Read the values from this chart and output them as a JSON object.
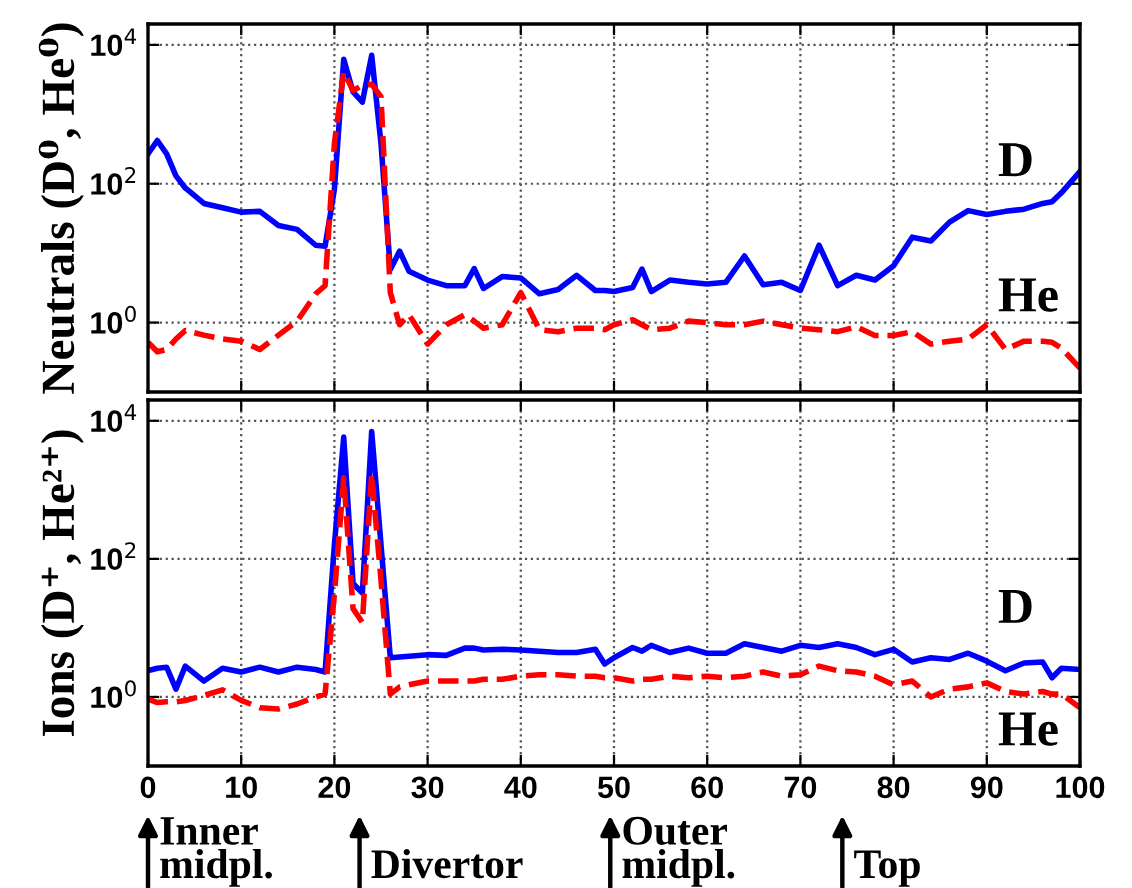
{
  "chart_data": [
    {
      "type": "line",
      "ylabel": "Neutrals (D⁰, He⁰)",
      "log": "y",
      "grid": true,
      "tick_labels": "y",
      "x": [
        0,
        1,
        2,
        3,
        4,
        6,
        8,
        10,
        12,
        14,
        16,
        18,
        19,
        20,
        21,
        22,
        23,
        24,
        25,
        26,
        27,
        28,
        30,
        32,
        34,
        35,
        36,
        38,
        40,
        42,
        44,
        46,
        48,
        49,
        50,
        52,
        53,
        54,
        56,
        58,
        60,
        62,
        64,
        66,
        68,
        70,
        72,
        74,
        76,
        78,
        80,
        82,
        84,
        86,
        88,
        90,
        92,
        94,
        96,
        97,
        98,
        100
      ],
      "xlim": [
        0,
        100
      ],
      "xticks": [
        {
          "value": 0,
          "label": null
        },
        {
          "value": 10,
          "label": null
        },
        {
          "value": 20,
          "label": null
        },
        {
          "value": 30,
          "label": null
        },
        {
          "value": 40,
          "label": null
        },
        {
          "value": 50,
          "label": null
        },
        {
          "value": 60,
          "label": null
        },
        {
          "value": 70,
          "label": null
        },
        {
          "value": 80,
          "label": null
        },
        {
          "value": 90,
          "label": null
        },
        {
          "value": 100,
          "label": null
        }
      ],
      "ylim": [
        0.1,
        20000
      ],
      "yticks": [
        {
          "value": 1,
          "label": "10$^{0}$"
        },
        {
          "value": 100,
          "label": "10$^{2}$"
        },
        {
          "value": 10000,
          "label": "10$^{4}$"
        }
      ],
      "series": [
        {
          "name": "D",
          "color": "#0000ff",
          "line_style": "solid",
          "values": [
            270,
            420,
            270,
            130,
            87,
            52,
            45,
            39,
            40,
            25,
            22,
            13,
            12.6,
            83,
            6200,
            2100,
            1500,
            7100,
            380,
            5.8,
            10.7,
            5.5,
            4.1,
            3.4,
            3.4,
            6.0,
            3.1,
            4.6,
            4.4,
            2.6,
            3.0,
            4.8,
            2.9,
            2.9,
            2.8,
            3.2,
            5.9,
            2.8,
            4.1,
            3.8,
            3.6,
            3.8,
            9.1,
            3.5,
            3.8,
            2.9,
            13,
            3.4,
            4.8,
            4.1,
            6.6,
            17,
            15,
            28,
            41,
            36,
            40,
            43,
            52,
            55,
            74,
            150
          ]
        },
        {
          "name": "He",
          "color": "#ff0000",
          "line_style": "dashed",
          "values": [
            0.52,
            0.38,
            0.41,
            0.58,
            0.77,
            0.66,
            0.58,
            0.54,
            0.41,
            0.66,
            1.05,
            2.6,
            3.4,
            380,
            4100,
            2200,
            2600,
            2700,
            1800,
            2.7,
            0.93,
            1.3,
            0.49,
            0.93,
            1.3,
            1.05,
            0.83,
            0.93,
            2.7,
            0.79,
            0.74,
            0.83,
            0.83,
            0.79,
            0.93,
            1.1,
            0.93,
            0.79,
            0.83,
            1.05,
            1.0,
            0.93,
            0.93,
            1.05,
            0.93,
            0.83,
            0.79,
            0.74,
            0.87,
            0.65,
            0.65,
            0.74,
            0.49,
            0.54,
            0.58,
            0.93,
            0.41,
            0.54,
            0.54,
            0.52,
            0.43,
            0.22
          ]
        }
      ]
    },
    {
      "type": "line",
      "ylabel": "Ions (D⁺, He²⁺)",
      "log": "y",
      "grid": true,
      "x": [
        0,
        1,
        2,
        3,
        4,
        6,
        8,
        10,
        12,
        14,
        16,
        18,
        19,
        20,
        21,
        22,
        23,
        24,
        25,
        26,
        27,
        28,
        30,
        32,
        34,
        35,
        36,
        38,
        40,
        42,
        44,
        46,
        48,
        49,
        50,
        52,
        53,
        54,
        56,
        58,
        60,
        62,
        64,
        66,
        68,
        70,
        72,
        74,
        76,
        78,
        80,
        82,
        84,
        86,
        88,
        90,
        92,
        94,
        96,
        97,
        98,
        100
      ],
      "xlim": [
        0,
        100
      ],
      "xticks": [
        0,
        10,
        20,
        30,
        40,
        50,
        60,
        70,
        80,
        90,
        100
      ],
      "ylim": [
        0.1,
        20000
      ],
      "yticks": [
        {
          "value": 1,
          "label": "10$^{0}$"
        },
        {
          "value": 100,
          "label": "10$^{2}$"
        },
        {
          "value": 10000,
          "label": "10$^{4}$"
        }
      ],
      "series": [
        {
          "name": "D",
          "color": "#0000ff",
          "line_style": "solid",
          "values": [
            2.4,
            2.6,
            2.7,
            1.3,
            2.8,
            1.7,
            2.6,
            2.3,
            2.7,
            2.3,
            2.7,
            2.5,
            2.3,
            160,
            5800,
            44,
            32,
            7000,
            160,
            3.7,
            3.8,
            3.9,
            4.1,
            4.0,
            5.1,
            5.1,
            4.8,
            4.9,
            4.8,
            4.6,
            4.4,
            4.4,
            4.9,
            3.0,
            3.7,
            5.2,
            4.6,
            5.6,
            4.4,
            5.1,
            4.3,
            4.3,
            5.9,
            5.2,
            4.6,
            5.6,
            5.2,
            5.9,
            5.2,
            4.1,
            4.9,
            3.2,
            3.7,
            3.5,
            4.3,
            3.3,
            2.4,
            3.1,
            3.2,
            1.9,
            2.6,
            2.5
          ]
        },
        {
          "name": "He",
          "color": "#ff0000",
          "line_style": "dashed",
          "values": [
            0.93,
            0.83,
            0.85,
            0.85,
            0.89,
            1.05,
            1.27,
            0.89,
            0.7,
            0.67,
            0.79,
            1.0,
            1.1,
            31,
            1500,
            19,
            12,
            1700,
            49,
            1.1,
            1.4,
            1.5,
            1.7,
            1.7,
            1.7,
            1.7,
            1.8,
            1.8,
            2.0,
            2.1,
            2.1,
            2.0,
            2.0,
            1.9,
            1.9,
            1.7,
            1.8,
            1.8,
            2.0,
            1.9,
            2.0,
            1.9,
            2.0,
            2.3,
            2.0,
            2.1,
            2.8,
            2.4,
            2.3,
            2.0,
            1.5,
            1.7,
            1.0,
            1.3,
            1.4,
            1.6,
            1.2,
            1.1,
            1.2,
            1.1,
            1.1,
            0.7
          ]
        }
      ],
      "annotations": [
        "Inner\nmidpl.",
        "Divertor",
        "Outer\nmidpl.",
        "Top"
      ]
    }
  ]
}
